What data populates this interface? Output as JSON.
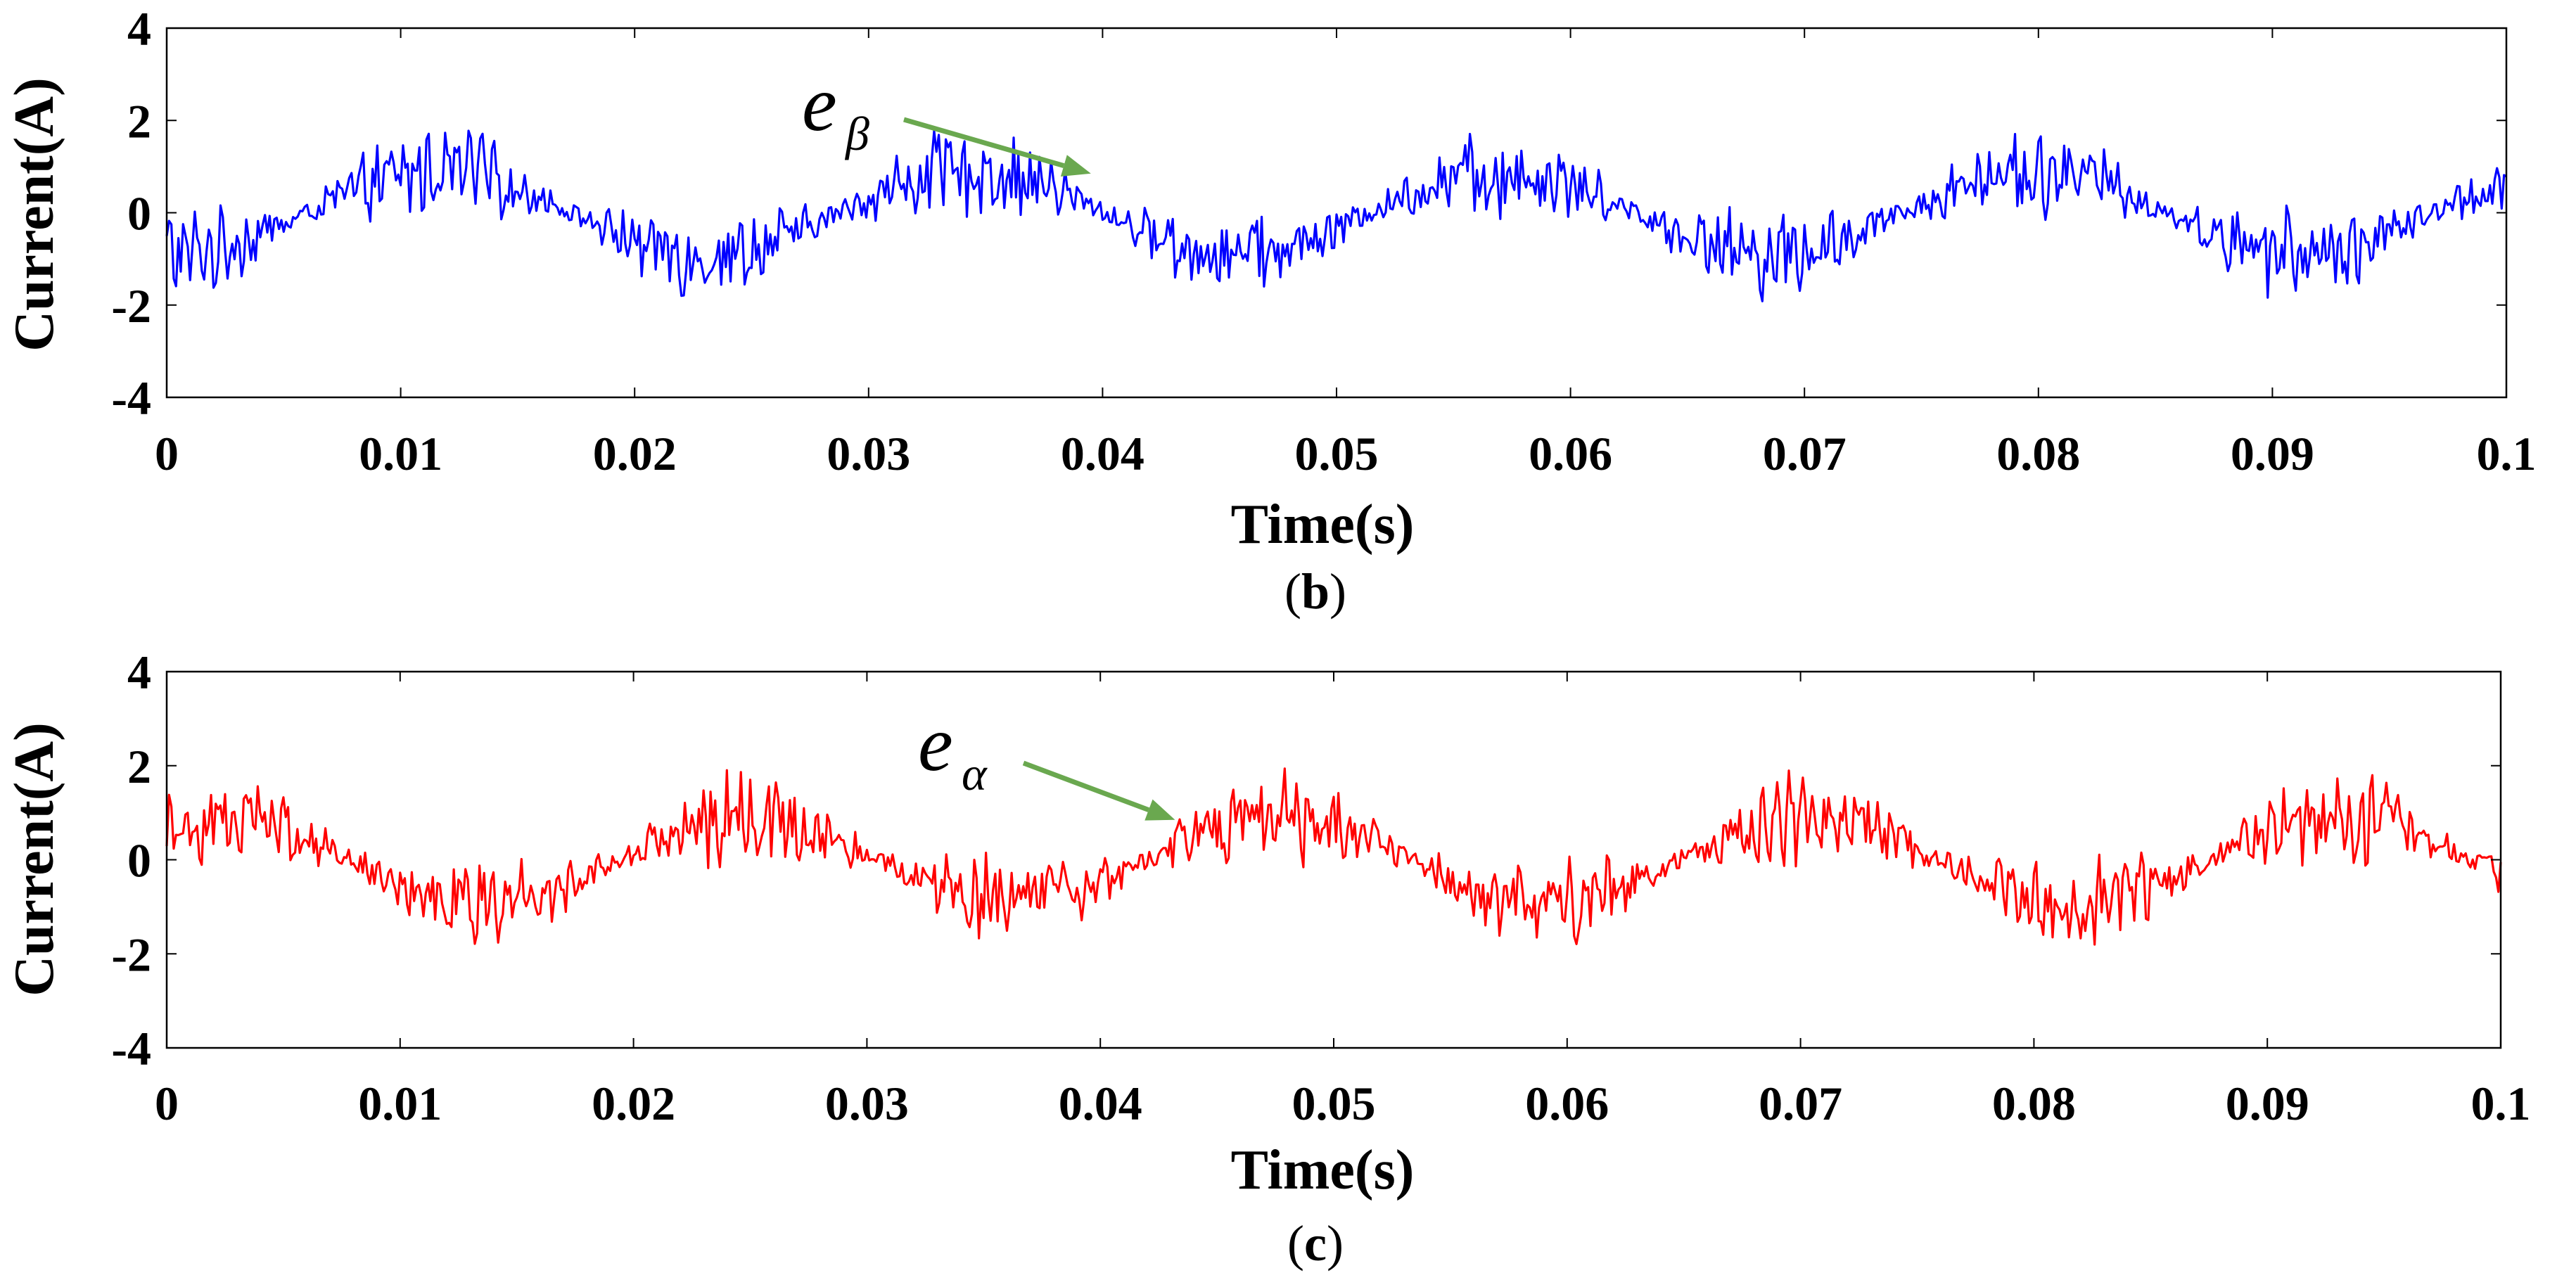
{
  "chart_data": [
    {
      "type": "line",
      "panel": "(b)",
      "caption_open": "(",
      "caption_letter": "b",
      "caption_close": ")",
      "xlabel": "Time(s)",
      "ylabel": "Current(A)",
      "xlim": [
        0,
        0.1
      ],
      "ylim": [
        -4,
        4
      ],
      "xticks": [
        0,
        0.01,
        0.02,
        0.03,
        0.04,
        0.05,
        0.06,
        0.07,
        0.08,
        0.09,
        0.1
      ],
      "xtick_labels": [
        "0",
        "0.01",
        "0.02",
        "0.03",
        "0.04",
        "0.05",
        "0.06",
        "0.07",
        "0.08",
        "0.09",
        "0.1"
      ],
      "yticks": [
        -4,
        -2,
        0,
        2,
        4
      ],
      "ytick_labels": [
        "-4",
        "-2",
        "0",
        "2",
        "4"
      ],
      "grid": false,
      "color": "#0000ff",
      "series": [
        {
          "name": "e_beta",
          "signal": "noisy sinusoid",
          "frequency_hz": 44,
          "amplitude": 0.9,
          "phase_deg": -95,
          "noise_amplitude": 0.75,
          "sample_step_s": 0.0001,
          "annotation": {
            "symbol": "e",
            "subscript": "β",
            "points_to": [
              0.0395,
              0.85
            ]
          }
        }
      ]
    },
    {
      "type": "line",
      "panel": "(c)",
      "caption_open": "(",
      "caption_letter": "c",
      "caption_close": ")",
      "xlabel": "Time(s)",
      "ylabel": "Current(A)",
      "xlim": [
        0,
        0.1
      ],
      "ylim": [
        -4,
        4
      ],
      "xticks": [
        0,
        0.01,
        0.02,
        0.03,
        0.04,
        0.05,
        0.06,
        0.07,
        0.08,
        0.09,
        0.1
      ],
      "xtick_labels": [
        "0",
        "0.01",
        "0.02",
        "0.03",
        "0.04",
        "0.05",
        "0.06",
        "0.07",
        "0.08",
        "0.09",
        "0.1"
      ],
      "yticks": [
        -4,
        -2,
        0,
        2,
        4
      ],
      "ytick_labels": [
        "-4",
        "-2",
        "0",
        "2",
        "4"
      ],
      "grid": false,
      "color": "#ff0000",
      "series": [
        {
          "name": "e_alpha",
          "signal": "noisy sinusoid",
          "frequency_hz": 44,
          "amplitude": 0.9,
          "phase_deg": 55,
          "noise_amplitude": 0.75,
          "sample_step_s": 0.0001,
          "annotation": {
            "symbol": "e",
            "subscript": "α",
            "points_to": [
              0.0432,
              0.85
            ]
          }
        }
      ]
    }
  ]
}
